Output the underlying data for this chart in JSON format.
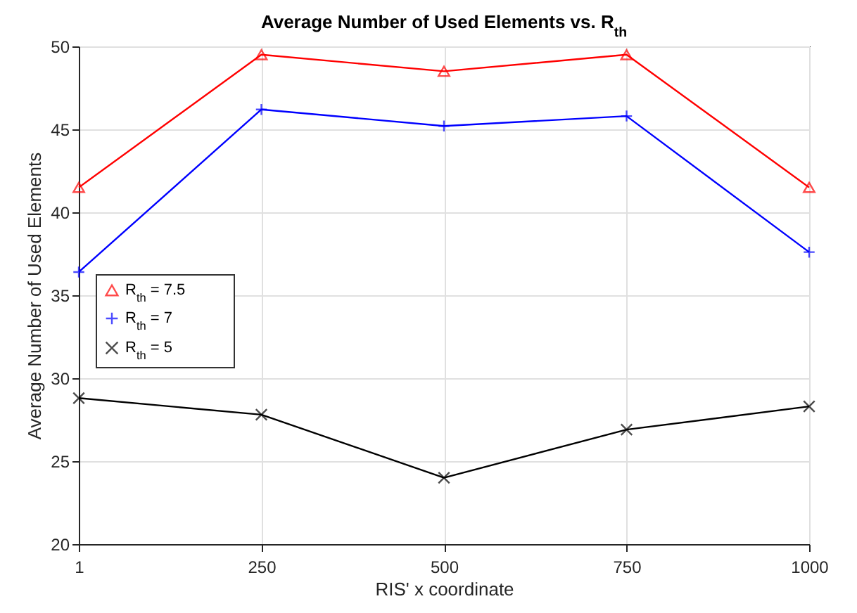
{
  "chart_data": {
    "type": "line",
    "title": "Average Number of Used Elements vs. R$_{th}$",
    "xlabel": "RIS' x coordinate",
    "ylabel": "Average Number of Used Elements",
    "categories": [
      "1",
      "250",
      "500",
      "750",
      "1000"
    ],
    "series": [
      {
        "name": "R$_{th}$ = 7.5",
        "color": "#ff0000",
        "marker": "triangle",
        "values": [
          41.5,
          49.5,
          48.5,
          49.5,
          41.5
        ]
      },
      {
        "name": "R$_{th}$ = 7",
        "color": "#0000ff",
        "marker": "plus",
        "values": [
          36.4,
          46.2,
          45.2,
          45.8,
          37.6
        ]
      },
      {
        "name": "R$_{th}$ = 5",
        "color": "#000000",
        "marker": "cross",
        "values": [
          28.8,
          27.8,
          24.0,
          26.9,
          28.3
        ]
      }
    ],
    "ylim": [
      20,
      50
    ],
    "yticks": [
      20,
      25,
      30,
      35,
      40,
      45,
      50
    ],
    "grid": true,
    "legend": "left",
    "line_style": "solid"
  }
}
